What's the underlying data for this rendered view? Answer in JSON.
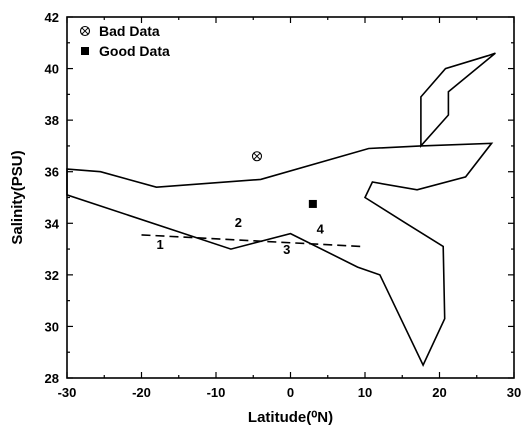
{
  "chart_data": {
    "type": "line",
    "xlabel": "Latitude(⁰N)",
    "ylabel": "Salinity(PSU)",
    "xlim": [
      -30,
      30
    ],
    "ylim": [
      28,
      42
    ],
    "xticks": [
      "-30",
      "-20",
      "-10",
      "0",
      "10",
      "20",
      "30"
    ],
    "yticks": [
      "28",
      "30",
      "32",
      "34",
      "36",
      "38",
      "40",
      "42"
    ],
    "legend": [
      {
        "name": "Bad Data",
        "marker": "circled-x"
      },
      {
        "name": "Good Data",
        "marker": "filled-square"
      }
    ],
    "legend_position": "top-left",
    "outline": {
      "x": [
        -30,
        -25.5,
        -18,
        -4,
        10.5,
        17.5,
        27,
        23.5,
        17,
        11,
        10,
        15.5,
        20.5,
        20.7,
        17.8,
        12,
        9,
        0,
        -8,
        -30
      ],
      "y": [
        36.1,
        36.0,
        35.4,
        35.7,
        36.9,
        37.0,
        37.1,
        35.8,
        35.3,
        35.6,
        35.0,
        34.0,
        33.1,
        30.3,
        28.5,
        32.0,
        32.3,
        33.6,
        33.0,
        35.1
      ]
    },
    "outline_arm": {
      "x": [
        17.5,
        17.5,
        20.8,
        26.5,
        27.5,
        21.2,
        21.2,
        17.5
      ],
      "y": [
        37.0,
        38.9,
        40.0,
        40.5,
        40.6,
        39.1,
        38.2,
        37.0
      ]
    },
    "dashed_line": {
      "x": [
        -20,
        9.5
      ],
      "y": [
        33.55,
        33.1
      ]
    },
    "points": [
      {
        "series": "Bad Data",
        "x": -4.5,
        "y": 36.6
      },
      {
        "series": "Good Data",
        "x": 3,
        "y": 34.75
      }
    ],
    "annotations": [
      {
        "text": "1",
        "x": -17.5,
        "y": 33.0
      },
      {
        "text": "2",
        "x": -7,
        "y": 33.85
      },
      {
        "text": "3",
        "x": -0.5,
        "y": 32.8
      },
      {
        "text": "4",
        "x": 4,
        "y": 33.6
      }
    ]
  }
}
